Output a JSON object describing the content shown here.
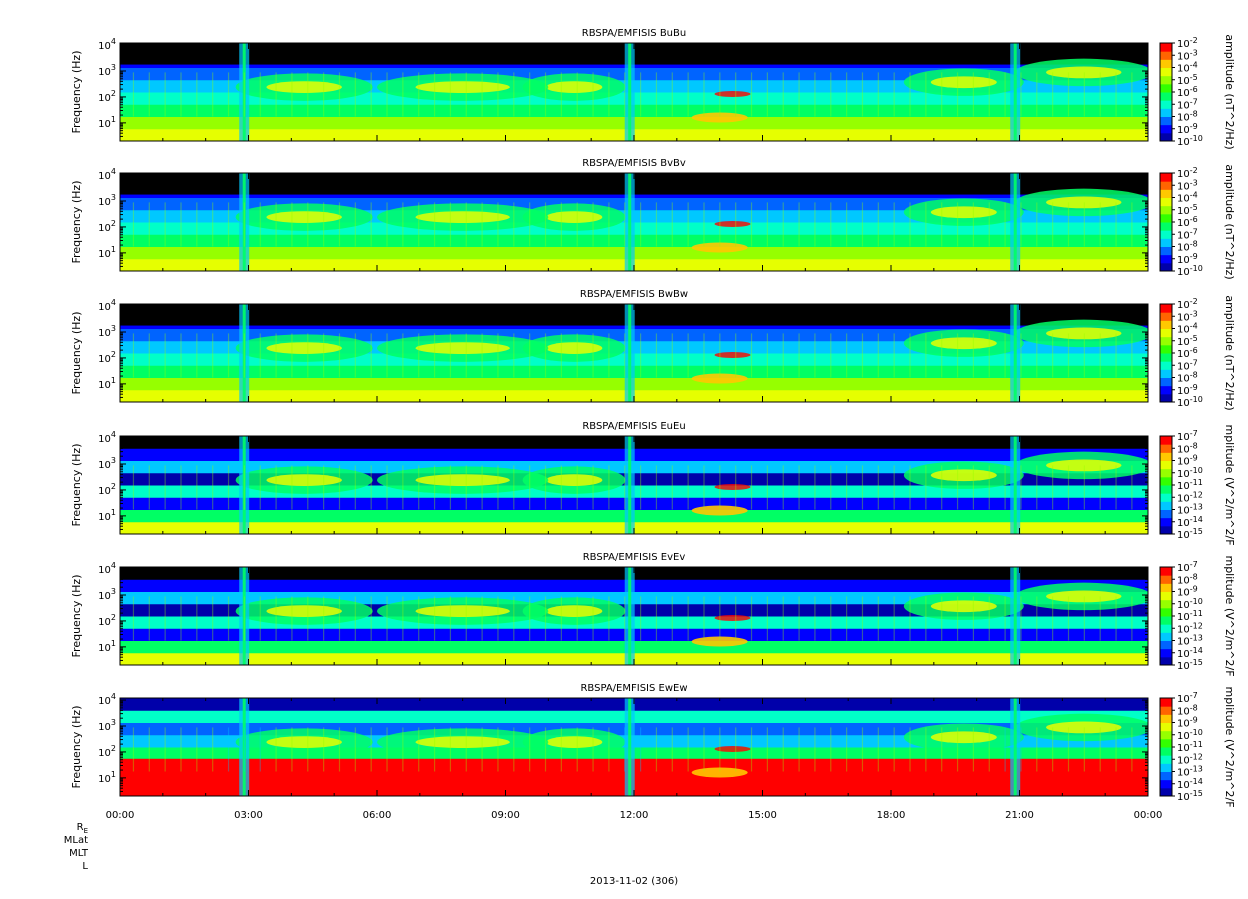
{
  "chart_data": [
    {
      "type": "heatmap",
      "title": "RBSPA/EMFISIS  BuBu",
      "ylabel": "Frequency (Hz)",
      "y_scale": "log",
      "ylim": [
        2,
        12000
      ],
      "y_ticks": [
        {
          "base": "10",
          "exp": "1"
        },
        {
          "base": "10",
          "exp": "2"
        },
        {
          "base": "10",
          "exp": "3"
        },
        {
          "base": "10",
          "exp": "4"
        }
      ],
      "colorbar": {
        "label": "amplitude (nT^2/Hz)",
        "scale": "log",
        "range_exponents": [
          -10,
          -2
        ],
        "ticks": [
          {
            "base": "10",
            "exp": "-2"
          },
          {
            "base": "10",
            "exp": "-3"
          },
          {
            "base": "10",
            "exp": "-4"
          },
          {
            "base": "10",
            "exp": "-5"
          },
          {
            "base": "10",
            "exp": "-6"
          },
          {
            "base": "10",
            "exp": "-7"
          },
          {
            "base": "10",
            "exp": "-8"
          },
          {
            "base": "10",
            "exp": "-9"
          },
          {
            "base": "10",
            "exp": "-10"
          }
        ]
      }
    },
    {
      "type": "heatmap",
      "title": "RBSPA/EMFISIS  BvBv",
      "ylabel": "Frequency (Hz)",
      "y_scale": "log",
      "ylim": [
        2,
        12000
      ],
      "y_ticks": [
        {
          "base": "10",
          "exp": "1"
        },
        {
          "base": "10",
          "exp": "2"
        },
        {
          "base": "10",
          "exp": "3"
        },
        {
          "base": "10",
          "exp": "4"
        }
      ],
      "colorbar": {
        "label": "amplitude (nT^2/Hz)",
        "scale": "log",
        "range_exponents": [
          -10,
          -2
        ],
        "ticks": [
          {
            "base": "10",
            "exp": "-2"
          },
          {
            "base": "10",
            "exp": "-3"
          },
          {
            "base": "10",
            "exp": "-4"
          },
          {
            "base": "10",
            "exp": "-5"
          },
          {
            "base": "10",
            "exp": "-6"
          },
          {
            "base": "10",
            "exp": "-7"
          },
          {
            "base": "10",
            "exp": "-8"
          },
          {
            "base": "10",
            "exp": "-9"
          },
          {
            "base": "10",
            "exp": "-10"
          }
        ]
      }
    },
    {
      "type": "heatmap",
      "title": "RBSPA/EMFISIS  BwBw",
      "ylabel": "Frequency (Hz)",
      "y_scale": "log",
      "ylim": [
        2,
        12000
      ],
      "y_ticks": [
        {
          "base": "10",
          "exp": "1"
        },
        {
          "base": "10",
          "exp": "2"
        },
        {
          "base": "10",
          "exp": "3"
        },
        {
          "base": "10",
          "exp": "4"
        }
      ],
      "colorbar": {
        "label": "amplitude (nT^2/Hz)",
        "scale": "log",
        "range_exponents": [
          -10,
          -2
        ],
        "ticks": [
          {
            "base": "10",
            "exp": "-2"
          },
          {
            "base": "10",
            "exp": "-3"
          },
          {
            "base": "10",
            "exp": "-4"
          },
          {
            "base": "10",
            "exp": "-5"
          },
          {
            "base": "10",
            "exp": "-6"
          },
          {
            "base": "10",
            "exp": "-7"
          },
          {
            "base": "10",
            "exp": "-8"
          },
          {
            "base": "10",
            "exp": "-9"
          },
          {
            "base": "10",
            "exp": "-10"
          }
        ]
      }
    },
    {
      "type": "heatmap",
      "title": "RBSPA/EMFISIS  EuEu",
      "ylabel": "Frequency (Hz)",
      "y_scale": "log",
      "ylim": [
        2,
        12000
      ],
      "y_ticks": [
        {
          "base": "10",
          "exp": "1"
        },
        {
          "base": "10",
          "exp": "2"
        },
        {
          "base": "10",
          "exp": "3"
        },
        {
          "base": "10",
          "exp": "4"
        }
      ],
      "colorbar": {
        "label": "mplitude (V^2/m^2/F",
        "scale": "log",
        "range_exponents": [
          -15,
          -7
        ],
        "ticks": [
          {
            "base": "10",
            "exp": "-7"
          },
          {
            "base": "10",
            "exp": "-8"
          },
          {
            "base": "10",
            "exp": "-9"
          },
          {
            "base": "10",
            "exp": "-10"
          },
          {
            "base": "10",
            "exp": "-11"
          },
          {
            "base": "10",
            "exp": "-12"
          },
          {
            "base": "10",
            "exp": "-13"
          },
          {
            "base": "10",
            "exp": "-14"
          },
          {
            "base": "10",
            "exp": "-15"
          }
        ]
      }
    },
    {
      "type": "heatmap",
      "title": "RBSPA/EMFISIS  EvEv",
      "ylabel": "Frequency (Hz)",
      "y_scale": "log",
      "ylim": [
        2,
        12000
      ],
      "y_ticks": [
        {
          "base": "10",
          "exp": "1"
        },
        {
          "base": "10",
          "exp": "2"
        },
        {
          "base": "10",
          "exp": "3"
        },
        {
          "base": "10",
          "exp": "4"
        }
      ],
      "colorbar": {
        "label": "mplitude (V^2/m^2/F",
        "scale": "log",
        "range_exponents": [
          -15,
          -7
        ],
        "ticks": [
          {
            "base": "10",
            "exp": "-7"
          },
          {
            "base": "10",
            "exp": "-8"
          },
          {
            "base": "10",
            "exp": "-9"
          },
          {
            "base": "10",
            "exp": "-10"
          },
          {
            "base": "10",
            "exp": "-11"
          },
          {
            "base": "10",
            "exp": "-12"
          },
          {
            "base": "10",
            "exp": "-13"
          },
          {
            "base": "10",
            "exp": "-14"
          },
          {
            "base": "10",
            "exp": "-15"
          }
        ]
      }
    },
    {
      "type": "heatmap",
      "title": "RBSPA/EMFISIS  EwEw",
      "ylabel": "Frequency (Hz)",
      "y_scale": "log",
      "ylim": [
        2,
        12000
      ],
      "y_ticks": [
        {
          "base": "10",
          "exp": "1"
        },
        {
          "base": "10",
          "exp": "2"
        },
        {
          "base": "10",
          "exp": "3"
        },
        {
          "base": "10",
          "exp": "4"
        }
      ],
      "colorbar": {
        "label": "mplitude (V^2/m^2/F",
        "scale": "log",
        "range_exponents": [
          -15,
          -7
        ],
        "ticks": [
          {
            "base": "10",
            "exp": "-7"
          },
          {
            "base": "10",
            "exp": "-8"
          },
          {
            "base": "10",
            "exp": "-9"
          },
          {
            "base": "10",
            "exp": "-10"
          },
          {
            "base": "10",
            "exp": "-11"
          },
          {
            "base": "10",
            "exp": "-12"
          },
          {
            "base": "10",
            "exp": "-13"
          },
          {
            "base": "10",
            "exp": "-14"
          },
          {
            "base": "10",
            "exp": "-15"
          }
        ]
      }
    }
  ],
  "x_axis": {
    "range_hours": [
      0,
      24
    ],
    "tick_labels": [
      "00:00",
      "03:00",
      "06:00",
      "09:00",
      "12:00",
      "15:00",
      "18:00",
      "21:00",
      "00:00"
    ],
    "ephemeris_labels": [
      "MLat",
      "MLT",
      "L"
    ],
    "re_label": {
      "base": "R",
      "sub": "E"
    },
    "date_label": "2013-11-02 (306)"
  },
  "colormap": [
    "#0000aa",
    "#0000ff",
    "#0064ff",
    "#00c8ff",
    "#00ffc8",
    "#00ff64",
    "#32ff00",
    "#96ff00",
    "#e6ff00",
    "#ffc800",
    "#ff6400",
    "#ff0000"
  ]
}
